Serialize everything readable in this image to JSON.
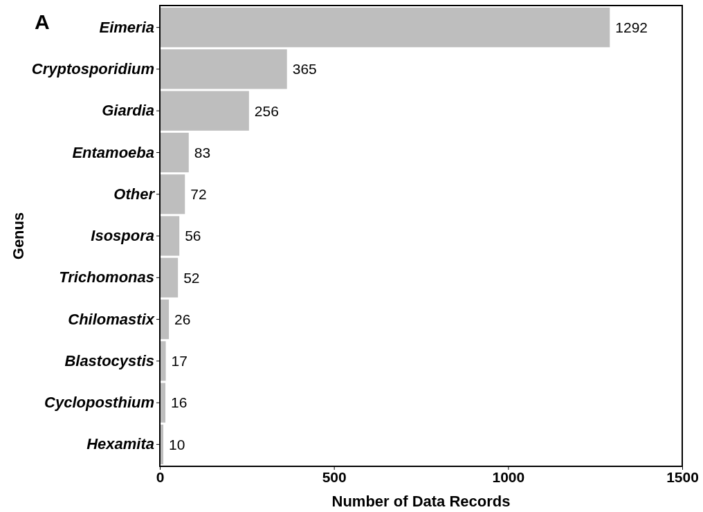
{
  "chart_data": {
    "type": "bar",
    "orientation": "horizontal",
    "categories": [
      "Eimeria",
      "Cryptosporidium",
      "Giardia",
      "Entamoeba",
      "Other",
      "Isospora",
      "Trichomonas",
      "Chilomastix",
      "Blastocystis",
      "Cycloposthium",
      "Hexamita"
    ],
    "values": [
      1292,
      365,
      256,
      83,
      72,
      56,
      52,
      26,
      17,
      16,
      10
    ],
    "color": "#bebebe",
    "xlim": [
      0,
      1500
    ],
    "xticks": [
      0,
      500,
      1000,
      1500
    ],
    "xlabel": "Number of Data Records",
    "ylabel": "Genus",
    "data_labels": true,
    "grid": false,
    "annotations": [
      "A"
    ]
  }
}
